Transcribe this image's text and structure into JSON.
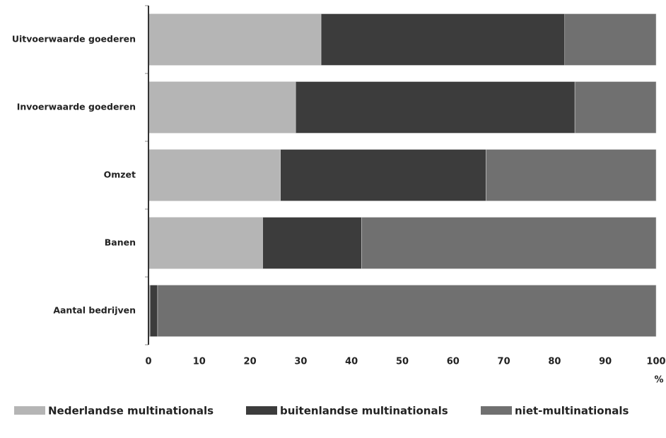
{
  "chart_data": {
    "type": "stacked-bar-horizontal",
    "categories": [
      "Uitvoerwaarde goederen",
      "Invoerwaarde goederen",
      "Omzet",
      "Banen",
      "Aantal bedrijven"
    ],
    "series": [
      {
        "name": "Nederlandse multinationals",
        "color": "#b5b5b5",
        "values": [
          34,
          29,
          26,
          22.5,
          0.3
        ]
      },
      {
        "name": "buitenlandse multinationals",
        "color": "#3c3c3c",
        "values": [
          48,
          55,
          40.5,
          19.5,
          1.5
        ]
      },
      {
        "name": "niet-multinationals",
        "color": "#707070",
        "values": [
          18,
          16,
          33.5,
          58,
          98.2
        ]
      }
    ],
    "xlim": [
      0,
      100
    ],
    "xticks": [
      0,
      10,
      20,
      30,
      40,
      50,
      60,
      70,
      80,
      90,
      100
    ],
    "x_label": "%",
    "grid": false,
    "legend": "bottom"
  }
}
